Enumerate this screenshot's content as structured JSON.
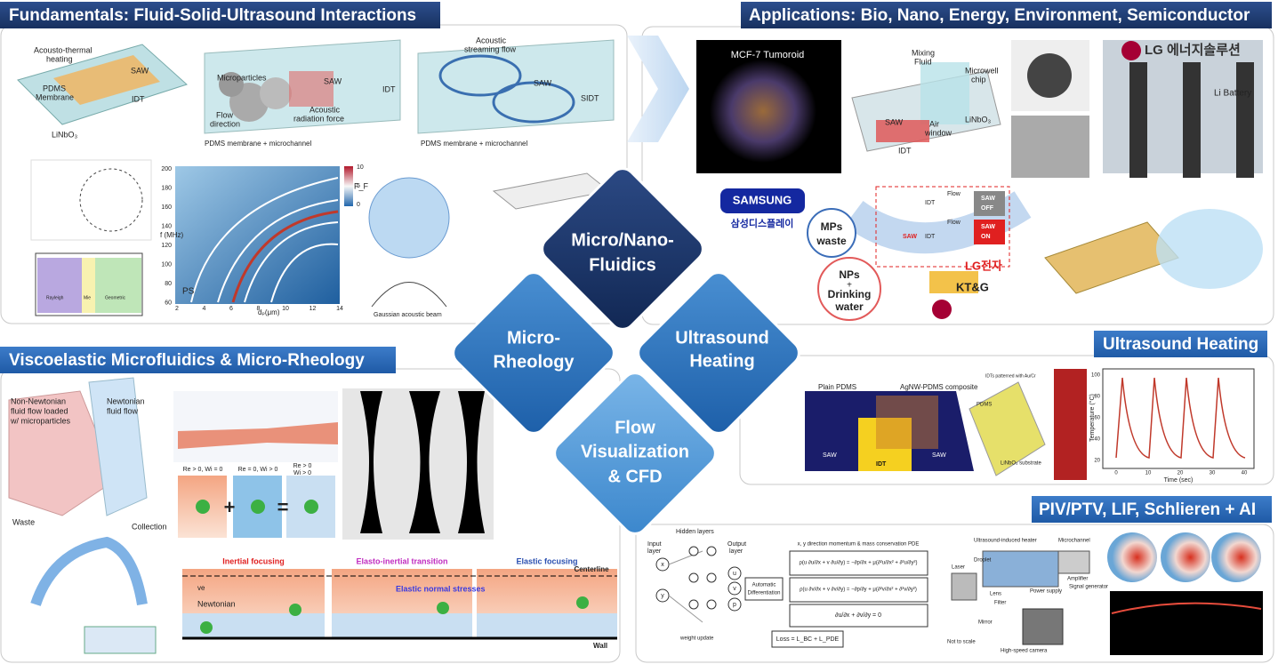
{
  "hub": [
    {
      "lines": [
        "Micro/Nano-",
        "Fluidics"
      ]
    },
    {
      "lines": [
        "Micro-",
        "Rheology"
      ]
    },
    {
      "lines": [
        "Ultrasound",
        "Heating"
      ]
    },
    {
      "lines": [
        "Flow",
        "Visualization",
        "& CFD"
      ]
    }
  ],
  "fundamentals": {
    "title": "Fundamentals: Fluid-Solid-Ultrasound Interactions",
    "labels": [
      "Acousto-thermal",
      "heating",
      "PDMS",
      "Membrane",
      "SAW",
      "IDT",
      "LiNbO₃",
      "Microparticles",
      "Flow",
      "direction",
      "SAW",
      "Acoustic",
      "radiation force",
      "IDT",
      "PDMS membrane + microchannel",
      "Acoustic",
      "streaming flow",
      "SAW",
      "SIDT",
      "PDMS membrane + microchannel",
      "f (MHz)",
      "dₚ(μm)",
      "PS",
      "F_F",
      "Gaussian acoustic beam",
      "Rayleigh",
      "Mie",
      "Geometric"
    ],
    "heatmap_yticks": [
      "200",
      "180",
      "160",
      "140",
      "120",
      "100",
      "80",
      "60"
    ],
    "heatmap_xticks": [
      "2",
      "4",
      "6",
      "8",
      "10",
      "12",
      "14"
    ],
    "colorbar_ticks": [
      "10",
      "5",
      "0"
    ]
  },
  "applications": {
    "title": "Applications: Bio, Nano, Energy, Environment, Semiconductor",
    "labels": [
      "MCF-7 Tumoroid",
      "Mixing",
      "Fluid",
      "Microwell",
      "chip",
      "SAW",
      "Air",
      "window",
      "LiNbO₃",
      "IDT",
      "LG 에너지솔루션",
      "Li Battery",
      "SAMSUNG",
      "삼성디스플레이",
      "MPs",
      "waste",
      "NPs",
      "+",
      "Drinking",
      "water",
      "Flow",
      "SAW",
      "OFF",
      "Flow",
      "SAW",
      "ON",
      "IDT",
      "SAW",
      "IDT",
      "LG전자",
      "KT&G"
    ]
  },
  "viscoelastic": {
    "title": "Viscoelastic Microfluidics & Micro-Rheology",
    "labels": [
      "Non-Newtonian",
      "fluid flow loaded",
      "w/ microparticles",
      "Newtonian",
      "fluid flow",
      "Waste",
      "Collection",
      "Inertial focusing",
      "Elasto-inertial transition",
      "Elastic focusing",
      "Centerline",
      "ve",
      "Newtonian",
      "Elastic normal stresses",
      "Wall",
      "Re > 0, Wi = 0",
      "Re = 0, Wi > 0",
      "Re > 0",
      "Wi > 0",
      "+",
      "="
    ]
  },
  "ultrasound_heating": {
    "title": "Ultrasound Heating",
    "labels": [
      "Plain PDMS",
      "AgNW-PDMS composite",
      "SAW",
      "IDT",
      "SAW",
      "PDMS",
      "LiNbO₃ substrate",
      "IDTs patterned with Au/Cr",
      "Temperature (°C)",
      "Time (sec)"
    ],
    "plot_yticks": [
      "100",
      "80",
      "60",
      "40",
      "20"
    ],
    "plot_xticks": [
      "0",
      "10",
      "20",
      "30",
      "40"
    ]
  },
  "piv": {
    "title": "PIV/PTV, LIF, Schlieren + AI",
    "labels": [
      "Input",
      "layer",
      "Hidden layers",
      "Output",
      "layer",
      "x",
      "y",
      "u",
      "v",
      "p",
      "Automatic",
      "Differentiation",
      "x, y direction momentum & mass conservation PDE",
      "ρ(u ∂u/∂x + v ∂u/∂y) = −∂p/∂x + μ(∂²u/∂x² + ∂²u/∂y²)",
      "ρ(u ∂v/∂x + v ∂v/∂y) = −∂p/∂y + μ(∂²v/∂x² + ∂²v/∂y²)",
      "∂u/∂x + ∂v/∂y = 0",
      "weight update",
      "Loss = L_BC + L_PDE",
      "Ultrasound-induced heater",
      "Microchannel",
      "Droplet",
      "Laser",
      "Lens",
      "Filter",
      "Mirror",
      "Power supply",
      "Amplifier",
      "Signal generator",
      "High-speed camera",
      "Not to scale"
    ]
  }
}
